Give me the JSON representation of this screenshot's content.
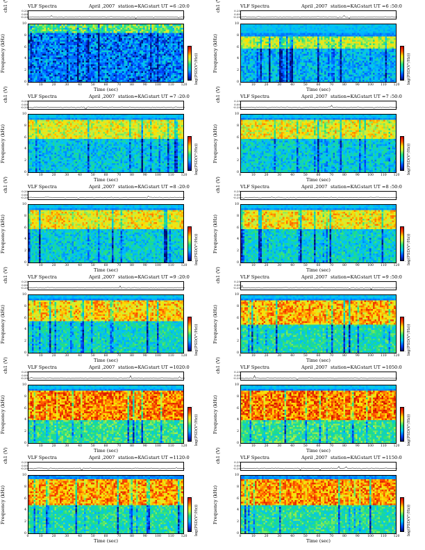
{
  "figure": {
    "spectra_title": "VLF Spectra",
    "date": "April ,2007",
    "station": "station=KAG",
    "ch_axis_label": "ch1 (V)",
    "ch_ticks": [
      "0.20",
      "0.00",
      "-0.20"
    ],
    "freq_axis_label": "Frequency (kHz)",
    "freq_ticks": [
      "10",
      "8",
      "6",
      "4",
      "2",
      "0"
    ],
    "time_axis_label": "Time (sec)",
    "time_ticks": [
      "0",
      "10",
      "20",
      "30",
      "40",
      "50",
      "60",
      "70",
      "80",
      "90",
      "100",
      "110",
      "120"
    ],
    "colorbar_label": "log(PSD(V²/Hz))",
    "colorbar_max": "·",
    "colorbar_min": "-"
  },
  "chart_data": [
    {
      "type": "heatmap",
      "start": "start UT =6 :20:0",
      "x_range": [
        0,
        120
      ],
      "y_range": [
        0,
        10
      ],
      "intensity": 0.18,
      "upper_band_khz": [
        8.5,
        10
      ]
    },
    {
      "type": "heatmap",
      "start": "start UT =6 :50:0",
      "x_range": [
        0,
        120
      ],
      "y_range": [
        0,
        10
      ],
      "intensity": 0.3,
      "upper_band_khz": [
        6,
        8
      ]
    },
    {
      "type": "heatmap",
      "start": "start UT =7 :20:0",
      "x_range": [
        0,
        120
      ],
      "y_range": [
        0,
        10
      ],
      "intensity": 0.42,
      "upper_band_khz": [
        6,
        9
      ]
    },
    {
      "type": "heatmap",
      "start": "start UT =7 :50:0",
      "x_range": [
        0,
        120
      ],
      "y_range": [
        0,
        10
      ],
      "intensity": 0.46,
      "upper_band_khz": [
        6,
        9
      ]
    },
    {
      "type": "heatmap",
      "start": "start UT =8 :20:0",
      "x_range": [
        0,
        120
      ],
      "y_range": [
        0,
        10
      ],
      "intensity": 0.48,
      "upper_band_khz": [
        6,
        9
      ]
    },
    {
      "type": "heatmap",
      "start": "start UT =8 :50:0",
      "x_range": [
        0,
        120
      ],
      "y_range": [
        0,
        10
      ],
      "intensity": 0.52,
      "upper_band_khz": [
        6,
        9
      ]
    },
    {
      "type": "heatmap",
      "start": "start UT =9 :20:0",
      "x_range": [
        0,
        120
      ],
      "y_range": [
        0,
        10
      ],
      "intensity": 0.58,
      "upper_band_khz": [
        5.5,
        9
      ]
    },
    {
      "type": "heatmap",
      "start": "start UT =9 :50:0",
      "x_range": [
        0,
        120
      ],
      "y_range": [
        0,
        10
      ],
      "intensity": 0.66,
      "upper_band_khz": [
        5,
        9
      ]
    },
    {
      "type": "heatmap",
      "start": "start UT =1020:0",
      "x_range": [
        0,
        120
      ],
      "y_range": [
        0,
        10
      ],
      "intensity": 0.78,
      "upper_band_khz": [
        4,
        9
      ]
    },
    {
      "type": "heatmap",
      "start": "start UT =1050:0",
      "x_range": [
        0,
        120
      ],
      "y_range": [
        0,
        10
      ],
      "intensity": 0.8,
      "upper_band_khz": [
        4,
        9
      ]
    },
    {
      "type": "heatmap",
      "start": "start UT =1120:0",
      "x_range": [
        0,
        120
      ],
      "y_range": [
        0,
        10
      ],
      "intensity": 0.7,
      "upper_band_khz": [
        5,
        9.5
      ]
    },
    {
      "type": "heatmap",
      "start": "start UT =1150:0",
      "x_range": [
        0,
        120
      ],
      "y_range": [
        0,
        10
      ],
      "intensity": 0.72,
      "upper_band_khz": [
        5,
        9.5
      ]
    }
  ]
}
